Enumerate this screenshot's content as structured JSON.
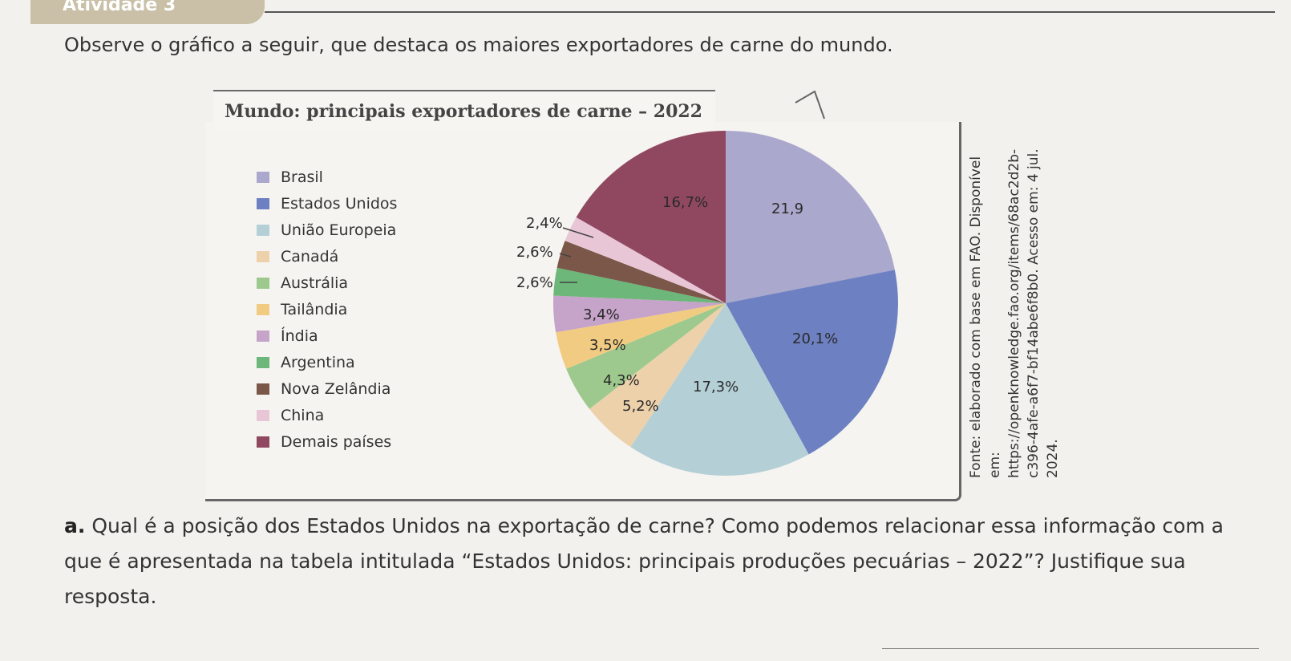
{
  "heading": {
    "tab_label": "Atividade 3"
  },
  "intro": "Observe o gráfico a seguir, que destaca os maiores exportadores de carne do mundo.",
  "chart_data": {
    "type": "pie",
    "title": "Mundo: principais exportadores de carne – 2022",
    "legend_position": "left",
    "slices": [
      {
        "name": "Brasil",
        "label": "21,9",
        "value": 21.9,
        "color": "#aaa8cc"
      },
      {
        "name": "Estados Unidos",
        "label": "20,1%",
        "value": 20.1,
        "color": "#6d80c2"
      },
      {
        "name": "União Europeia",
        "label": "17,3%",
        "value": 17.3,
        "color": "#b4d0d6"
      },
      {
        "name": "Canadá",
        "label": "5,2%",
        "value": 5.2,
        "color": "#ecd1ab"
      },
      {
        "name": "Austrália",
        "label": "4,3%",
        "value": 4.3,
        "color": "#9ec98e"
      },
      {
        "name": "Tailândia",
        "label": "3,5%",
        "value": 3.5,
        "color": "#f1cb82"
      },
      {
        "name": "Índia",
        "label": "3,4%",
        "value": 3.4,
        "color": "#c6a3c9"
      },
      {
        "name": "Argentina",
        "label": "2,6%",
        "value": 2.6,
        "color": "#6cb779"
      },
      {
        "name": "Nova Zelândia",
        "label": "2,6%",
        "value": 2.6,
        "color": "#7a5748"
      },
      {
        "name": "China",
        "label": "2,4%",
        "value": 2.4,
        "color": "#e8c6d6"
      },
      {
        "name": "Demais países",
        "label": "16,7%",
        "value": 16.7,
        "color": "#904860"
      }
    ]
  },
  "source": "Fonte: elaborado com base em FAO. Disponível em: https://openknowledge.fao.org/items/68ac2d2b-c396-4afe-a6f7-bf14abe6f8b0. Acesso em: 4 jul. 2024.",
  "question": {
    "marker": "a.",
    "text": "Qual é a posição dos Estados Unidos na exportação de carne? Como podemos relacionar essa informação com a que é apresentada na tabela intitulada “Estados Unidos: principais produções pecuárias – 2022”? Justifique sua resposta."
  }
}
